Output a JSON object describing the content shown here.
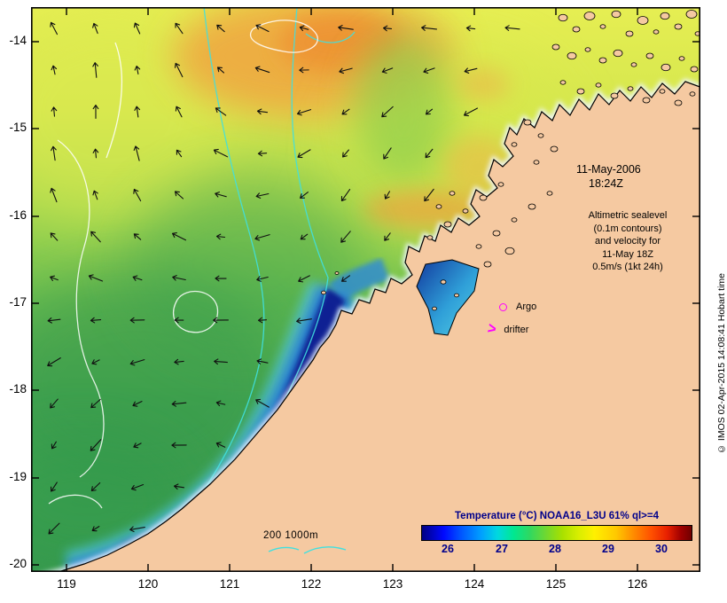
{
  "map": {
    "axes": {
      "lat_labels": [
        "-14",
        "-15",
        "-16",
        "-17",
        "-18",
        "-19",
        "-20"
      ],
      "lon_labels": [
        "119",
        "120",
        "121",
        "122",
        "123",
        "124",
        "125",
        "126"
      ]
    },
    "annotations": {
      "datetime": [
        "11-May-2006",
        "18:24Z"
      ],
      "info": [
        "Altimetric sealevel",
        "(0.1m contours)",
        "and velocity for",
        "11-May 18Z",
        "0.5m/s (1kt 24h)"
      ],
      "argo": "Argo",
      "drifter": "drifter",
      "drifter_symbol": ">",
      "bathy_legend": "200 1000m",
      "copyright": "© IMOS 02-Apr-2015 14:08:41 Hobart time"
    },
    "colorbar": {
      "title": "Temperature (°C) NOAA16_L3U 61% ql>=4",
      "ticks": [
        "26",
        "27",
        "28",
        "29",
        "30"
      ]
    },
    "colors": {
      "land": "#f5c9a1",
      "marker_magenta": "#ff00ff",
      "colorbar_text": "#00008b",
      "contour_cyan": "#40e0e0",
      "cold_water": "#0a1c90"
    }
  }
}
